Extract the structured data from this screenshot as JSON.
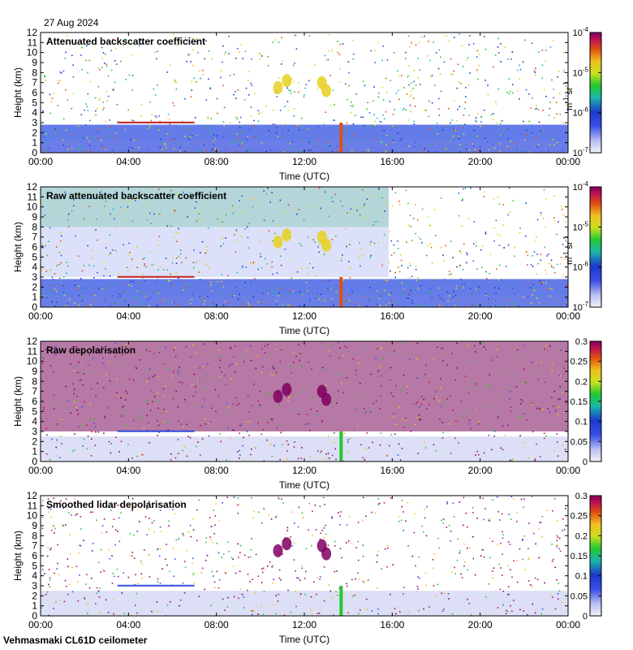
{
  "header": {
    "date": "27 Aug 2024"
  },
  "footer": {
    "instrument": "Vehmasmaki CL61D ceilometer"
  },
  "chart_data": [
    {
      "type": "heatmap",
      "title": "Attenuated backscatter coefficient",
      "xlabel": "Time (UTC)",
      "ylabel": "Height (km)",
      "x_ticks": [
        "00:00",
        "04:00",
        "08:00",
        "12:00",
        "16:00",
        "20:00",
        "00:00"
      ],
      "y_ticks": [
        0,
        1,
        2,
        3,
        4,
        5,
        6,
        7,
        8,
        9,
        10,
        11,
        12
      ],
      "xlim_hours": [
        0,
        24
      ],
      "ylim": [
        0,
        12
      ],
      "colorbar": {
        "scale": "log",
        "range": [
          1e-07,
          0.0001
        ],
        "ticks": [
          "10-7",
          "10-6",
          "10-5",
          "10-4"
        ],
        "unit": "m-1 sr-1"
      }
    },
    {
      "type": "heatmap",
      "title": "Raw attenuated backscatter coefficient",
      "xlabel": "Time (UTC)",
      "ylabel": "Height (km)",
      "x_ticks": [
        "00:00",
        "04:00",
        "08:00",
        "12:00",
        "16:00",
        "20:00",
        "00:00"
      ],
      "y_ticks": [
        0,
        1,
        2,
        3,
        4,
        5,
        6,
        7,
        8,
        9,
        10,
        11,
        12
      ],
      "xlim_hours": [
        0,
        24
      ],
      "ylim": [
        0,
        12
      ],
      "colorbar": {
        "scale": "log",
        "range": [
          1e-07,
          0.0001
        ],
        "ticks": [
          "10-7",
          "10-6",
          "10-5",
          "10-4"
        ],
        "unit": "m-1 sr-1"
      }
    },
    {
      "type": "heatmap",
      "title": "Raw depolarisation",
      "xlabel": "Time (UTC)",
      "ylabel": "Height (km)",
      "x_ticks": [
        "00:00",
        "04:00",
        "08:00",
        "12:00",
        "16:00",
        "20:00",
        "00:00"
      ],
      "y_ticks": [
        0,
        1,
        2,
        3,
        4,
        5,
        6,
        7,
        8,
        9,
        10,
        11,
        12
      ],
      "xlim_hours": [
        0,
        24
      ],
      "ylim": [
        0,
        12
      ],
      "colorbar": {
        "scale": "linear",
        "range": [
          0,
          0.3
        ],
        "ticks": [
          "0",
          "0.05",
          "0.1",
          "0.15",
          "0.2",
          "0.25",
          "0.3"
        ],
        "unit": ""
      }
    },
    {
      "type": "heatmap",
      "title": "Smoothed lidar depolarisation",
      "xlabel": "Time (UTC)",
      "ylabel": "Height (km)",
      "x_ticks": [
        "00:00",
        "04:00",
        "08:00",
        "12:00",
        "16:00",
        "20:00",
        "00:00"
      ],
      "y_ticks": [
        0,
        1,
        2,
        3,
        4,
        5,
        6,
        7,
        8,
        9,
        10,
        11,
        12
      ],
      "xlim_hours": [
        0,
        24
      ],
      "ylim": [
        0,
        12
      ],
      "colorbar": {
        "scale": "linear",
        "range": [
          0,
          0.3
        ],
        "ticks": [
          "0",
          "0.05",
          "0.1",
          "0.15",
          "0.2",
          "0.25",
          "0.3"
        ],
        "unit": ""
      }
    }
  ]
}
